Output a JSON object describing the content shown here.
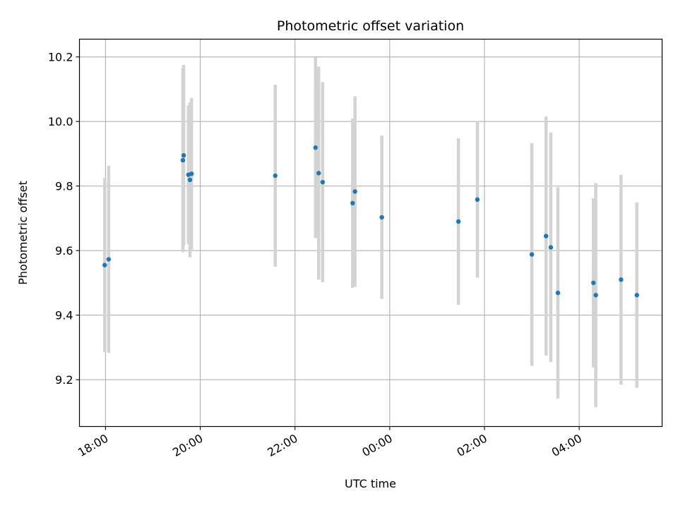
{
  "chart_data": {
    "type": "scatter",
    "title": "Photometric offset variation",
    "xlabel": "UTC time",
    "ylabel": "Photometric offset",
    "xlim": [
      "17:27",
      "05:45"
    ],
    "ylim": [
      9.055,
      10.255
    ],
    "x_ticks": [
      "18:00",
      "20:00",
      "22:00",
      "00:00",
      "02:00",
      "04:00"
    ],
    "y_ticks": [
      9.2,
      9.4,
      9.6,
      9.8,
      10.0,
      10.2
    ],
    "y_tick_labels": [
      "9.2",
      "9.4",
      "9.6",
      "9.8",
      "10.0",
      "10.2"
    ],
    "grid": true,
    "colors": {
      "point": "#1f77b4",
      "errorbar": "#d3d3d3",
      "grid": "#b0b0b0",
      "axes": "#000000"
    },
    "series": [
      {
        "points": [
          {
            "x": "17:59",
            "y": 9.555,
            "err": 0.27
          },
          {
            "x": "18:04",
            "y": 9.573,
            "err": 0.29
          },
          {
            "x": "19:38",
            "y": 9.88,
            "err": 0.285
          },
          {
            "x": "19:39",
            "y": 9.895,
            "err": 0.28
          },
          {
            "x": "19:45",
            "y": 9.835,
            "err": 0.215
          },
          {
            "x": "19:47",
            "y": 9.819,
            "err": 0.24
          },
          {
            "x": "19:49",
            "y": 9.838,
            "err": 0.235
          },
          {
            "x": "21:35",
            "y": 9.832,
            "err": 0.282
          },
          {
            "x": "22:26",
            "y": 9.919,
            "err": 0.28
          },
          {
            "x": "22:30",
            "y": 9.84,
            "err": 0.33
          },
          {
            "x": "22:35",
            "y": 9.812,
            "err": 0.31
          },
          {
            "x": "23:13",
            "y": 9.747,
            "err": 0.262
          },
          {
            "x": "23:16",
            "y": 9.783,
            "err": 0.295
          },
          {
            "x": "23:50",
            "y": 9.703,
            "err": 0.253
          },
          {
            "x": "01:27",
            "y": 9.69,
            "err": 0.258
          },
          {
            "x": "01:51",
            "y": 9.758,
            "err": 0.242
          },
          {
            "x": "03:00",
            "y": 9.588,
            "err": 0.345
          },
          {
            "x": "03:18",
            "y": 9.645,
            "err": 0.37
          },
          {
            "x": "03:24",
            "y": 9.61,
            "err": 0.355
          },
          {
            "x": "03:33",
            "y": 9.469,
            "err": 0.327
          },
          {
            "x": "04:18",
            "y": 9.5,
            "err": 0.262
          },
          {
            "x": "04:21",
            "y": 9.462,
            "err": 0.347
          },
          {
            "x": "04:53",
            "y": 9.51,
            "err": 0.325
          },
          {
            "x": "05:13",
            "y": 9.462,
            "err": 0.287
          }
        ]
      }
    ]
  }
}
